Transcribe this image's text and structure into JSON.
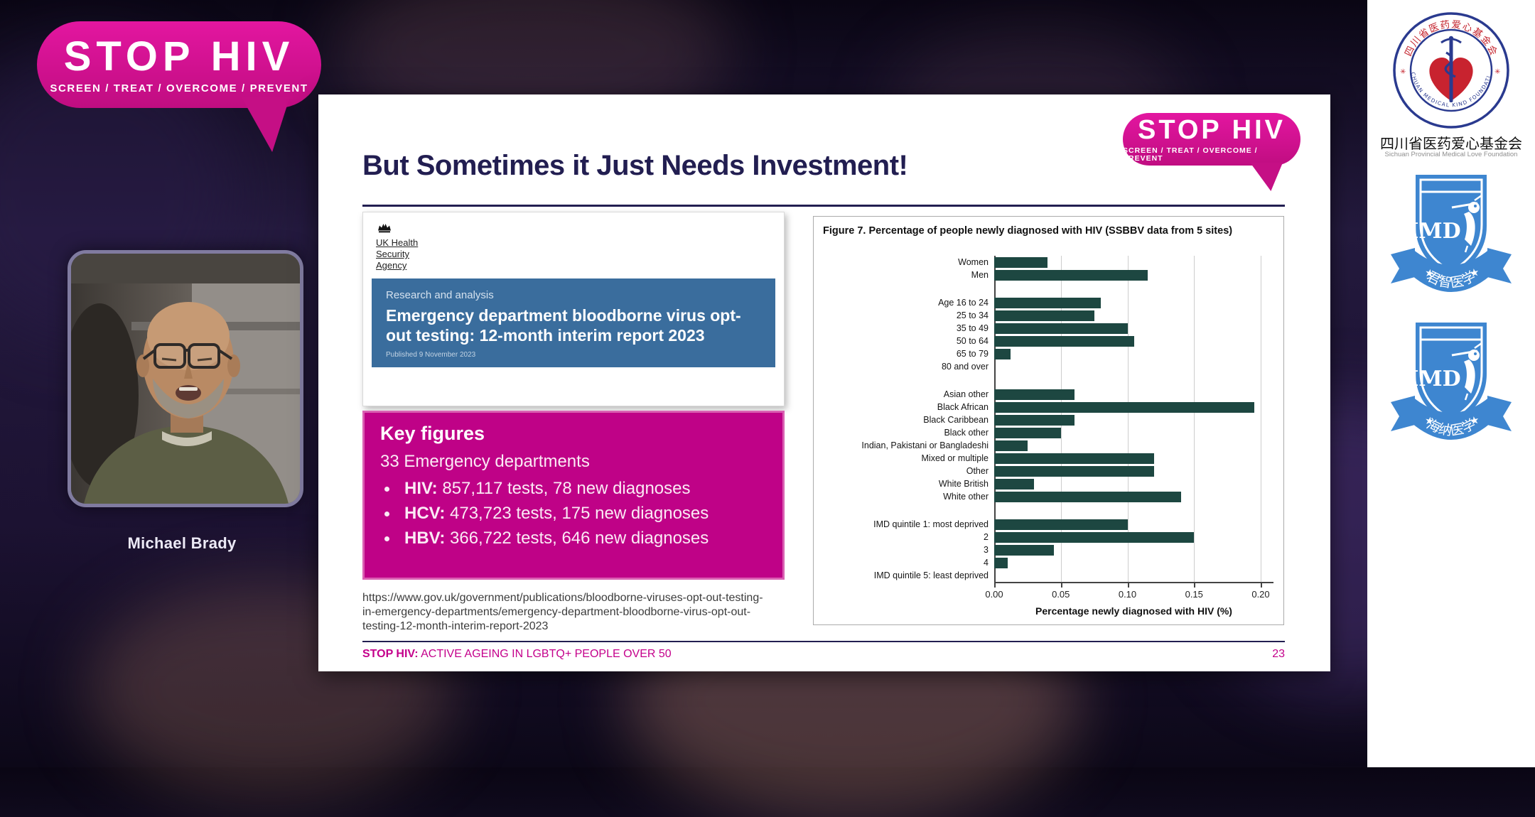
{
  "overlay_logo": {
    "title": "STOP HIV",
    "subtitle": "SCREEN / TREAT / OVERCOME / PREVENT",
    "color": "#d2118d"
  },
  "webcam": {
    "speaker_name": "Michael Brady"
  },
  "slide": {
    "title": "But Sometimes it Just Needs Investment!",
    "logo": {
      "title": "STOP HIV",
      "subtitle": "SCREEN / TREAT / OVERCOME / PREVENT"
    },
    "gov_report": {
      "agency_lines": [
        "UK Health",
        "Security",
        "Agency"
      ],
      "kicker": "Research and analysis",
      "title": "Emergency department bloodborne virus opt-out testing: 12-month interim report 2023",
      "published": "Published 9 November 2023"
    },
    "key_figures": {
      "heading": "Key figures",
      "intro": "33 Emergency departments",
      "bullets": [
        {
          "label": "HIV:",
          "text": " 857,117 tests, 78 new diagnoses"
        },
        {
          "label": "HCV:",
          "text": " 473,723 tests, 175 new diagnoses"
        },
        {
          "label": "HBV:",
          "text": " 366,722 tests, 646 new diagnoses"
        }
      ]
    },
    "source_url_lines": [
      "https://www.gov.uk/government/publications/bloodborne-viruses-opt-out-testing-",
      "in-emergency-departments/emergency-department-bloodborne-virus-opt-out-",
      "testing-12-month-interim-report-2023"
    ],
    "footer": {
      "brand": "STOP HIV:",
      "text": " ACTIVE AGEING IN LGBTQ+ PEOPLE OVER 50",
      "page_number": "23"
    }
  },
  "chart_data": {
    "type": "bar",
    "orientation": "horizontal",
    "title": "Figure 7. Percentage of people newly diagnosed with HIV (SSBBV data from 5 sites)",
    "xlabel": "Percentage newly diagnosed with HIV (%)",
    "xlim": [
      0,
      0.2
    ],
    "xticks": [
      0.0,
      0.05,
      0.1,
      0.15,
      0.2
    ],
    "bar_color": "#1d4741",
    "grid": true,
    "groups": [
      {
        "labels": [
          "Women",
          "Men"
        ],
        "values": [
          0.04,
          0.115
        ]
      },
      {
        "labels": [
          "Age 16 to 24",
          "25 to 34",
          "35 to 49",
          "50 to 64",
          "65 to 79",
          "80 and over"
        ],
        "values": [
          0.08,
          0.075,
          0.1,
          0.105,
          0.012,
          0
        ]
      },
      {
        "labels": [
          "Asian other",
          "Black African",
          "Black Caribbean",
          "Black other",
          "Indian, Pakistani or Bangladeshi",
          "Mixed or multiple",
          "Other",
          "White British",
          "White other"
        ],
        "values": [
          0.06,
          0.195,
          0.06,
          0.05,
          0.025,
          0.12,
          0.12,
          0.03,
          0.14
        ]
      },
      {
        "labels": [
          "IMD quintile 1: most deprived",
          "2",
          "3",
          "4",
          "IMD quintile 5: least deprived"
        ],
        "values": [
          0.1,
          0.15,
          0.045,
          0.01,
          0
        ]
      }
    ]
  },
  "sidebar": {
    "foundation": {
      "ring_top": "四川省医药爱心基金会",
      "ring_bottom": "SICHUAN MEDICAL KIND FOUNDATION",
      "name_zh": "四川省医药爱心基金会",
      "name_en": "Sichuan Provincial Medical Love Foundation"
    },
    "badges": [
      {
        "shield_text": "IMD",
        "ribbon_text": "君智医学"
      },
      {
        "shield_text": "IMD",
        "ribbon_text": "海纳医学"
      }
    ]
  }
}
